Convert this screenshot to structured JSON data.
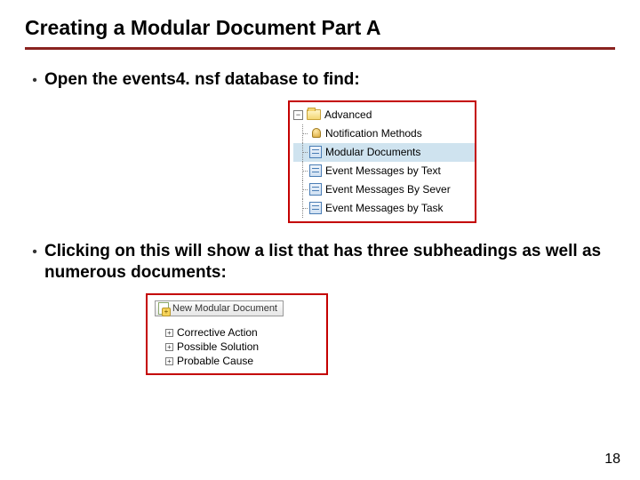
{
  "title": "Creating a Modular Document Part A",
  "bullets": {
    "b1": "Open the events4. nsf database to find:",
    "b2": "Clicking on this will show a list that has three subheadings as well as numerous documents:"
  },
  "tree": {
    "root_label": "Advanced",
    "items": [
      {
        "label": "Notification Methods",
        "icon": "bell"
      },
      {
        "label": "Modular Documents",
        "icon": "doc",
        "selected": true
      },
      {
        "label": "Event Messages by Text",
        "icon": "doc"
      },
      {
        "label": "Event Messages By Sever",
        "icon": "doc"
      },
      {
        "label": "Event Messages by Task",
        "icon": "doc"
      }
    ]
  },
  "panel2": {
    "button_label": "New Modular Document",
    "items": [
      {
        "label": "Corrective Action"
      },
      {
        "label": "Possible Solution"
      },
      {
        "label": "Probable Cause"
      }
    ]
  },
  "page_number": "18",
  "colors": {
    "rule": "#8a2320",
    "highlight_border": "#c40000",
    "selection_bg": "#cfe3ef"
  }
}
